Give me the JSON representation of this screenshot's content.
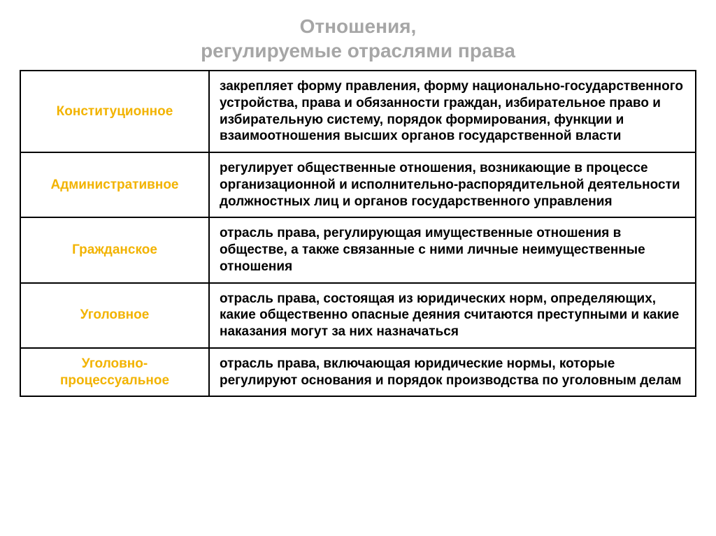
{
  "title_line1": "Отношения,",
  "title_line2": "регулируемые отраслями права",
  "table": {
    "col_widths": [
      "270px",
      "auto"
    ],
    "branch_color": "#f2b300",
    "title_color": "#a6a6a6",
    "border_color": "#000000",
    "rows": [
      {
        "branch": "Конституционное",
        "desc": "закрепляет форму правления, форму национально-государственного устройства, права и обязанности граждан, избирательное право и избирательную систему, порядок формирования, функции и взаимоотношения высших органов государственной власти"
      },
      {
        "branch": "Административное",
        "desc": "регулирует общественные отношения, возникающие в процессе организационной и исполнительно-распорядительной деятельности должностных лиц и органов государственного управления"
      },
      {
        "branch": "Гражданское",
        "desc": "отрасль права, регулирующая имущественные отношения в обществе, а также связанные с ними личные неимущественные отношения"
      },
      {
        "branch": "Уголовное",
        "desc": "отрасль права, состоящая из юридических норм, определяющих, какие общественно опасные деяния считаются преступными и какие наказания могут за них назначаться"
      },
      {
        "branch": "Уголовно-процессуальное",
        "desc": "отрасль права, включающая юридические нормы, которые регулируют основания и порядок производства по уголовным делам"
      }
    ]
  }
}
